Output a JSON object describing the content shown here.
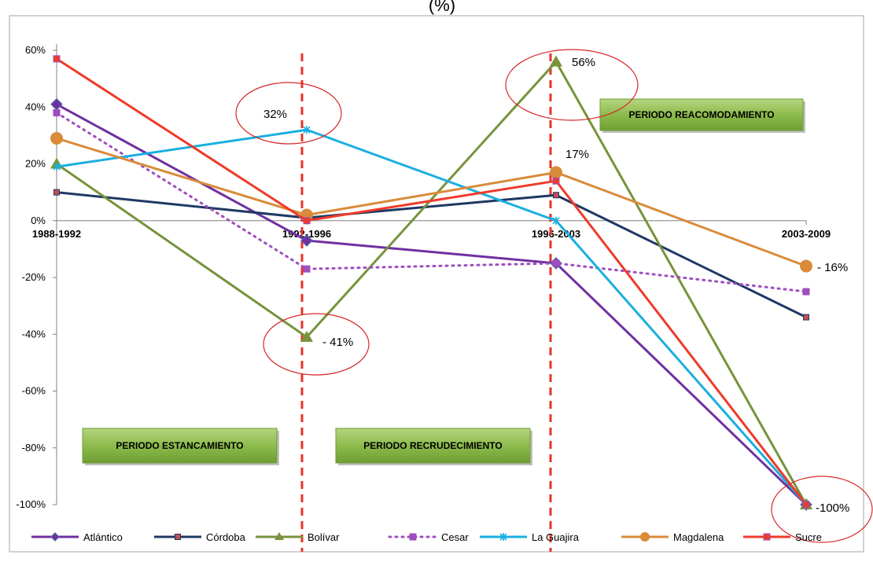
{
  "page_title": "(%)",
  "chart_data": {
    "type": "line",
    "title": "",
    "xlabel": "",
    "ylabel": "",
    "categories": [
      "1988-1992",
      "1992-1996",
      "1996-2003",
      "2003-2009"
    ],
    "ylim": [
      -100,
      60
    ],
    "yticks": [
      60,
      40,
      20,
      0,
      -20,
      -40,
      -60,
      -80,
      -100
    ],
    "ytick_labels": [
      "60%",
      "40%",
      "20%",
      "0%",
      "-20%",
      "-40%",
      "-60%",
      "-80%",
      "-100%"
    ],
    "grid": false,
    "legend_position": "bottom",
    "series": [
      {
        "name": "Atlántico",
        "values": [
          41,
          -7,
          -15,
          -100
        ],
        "color": "#7030A0",
        "marker": "diamond",
        "dash": "solid",
        "width": 3
      },
      {
        "name": "Córdoba",
        "values": [
          10,
          1,
          9,
          -34
        ],
        "color": "#1F3864",
        "marker": "square-small",
        "dash": "solid",
        "width": 3
      },
      {
        "name": "Bolívar",
        "values": [
          20,
          -41,
          56,
          -100
        ],
        "color": "#77933C",
        "marker": "triangle",
        "dash": "solid",
        "width": 3
      },
      {
        "name": "Cesar",
        "values": [
          38,
          -17,
          -15,
          -25
        ],
        "color": "#9E4EBF",
        "marker": "square",
        "dash": "dotted",
        "width": 3
      },
      {
        "name": "La Guajira",
        "values": [
          19,
          32,
          0,
          -100
        ],
        "color": "#1AAFE0",
        "marker": "star",
        "dash": "solid",
        "width": 3
      },
      {
        "name": "Magdalena",
        "values": [
          29,
          2,
          17,
          -16
        ],
        "color": "#D98B3A",
        "marker": "circle",
        "dash": "solid",
        "width": 3
      },
      {
        "name": "Sucre",
        "values": [
          57,
          0,
          14,
          -100
        ],
        "color": "#EE3B2A",
        "marker": "square",
        "dash": "solid",
        "width": 3
      }
    ],
    "annotations": [
      {
        "text": "32%",
        "category": "1992-1996",
        "value": 32
      },
      {
        "text": "- 41%",
        "category": "1992-1996",
        "value": -41
      },
      {
        "text": "56%",
        "category": "1996-2003",
        "value": 56
      },
      {
        "text": "17%",
        "category": "1996-2003",
        "value": 17
      },
      {
        "text": "- 16%",
        "category": "2003-2009",
        "value": -16
      },
      {
        "text": "-100%",
        "category": "2003-2009",
        "value": -100
      }
    ],
    "period_boxes": [
      {
        "label": "PERIODO ESTANCAMIENTO"
      },
      {
        "label": "PERIODO RECRUDECIMIENTO"
      },
      {
        "label": "PERIODO REACOMODAMIENTO"
      }
    ],
    "colors": {
      "divider": "#E8332A",
      "circle": "#D62828",
      "box_fill": "#7DAE3C",
      "box_fill_light": "#A7CF6A",
      "axis": "#808080"
    }
  }
}
